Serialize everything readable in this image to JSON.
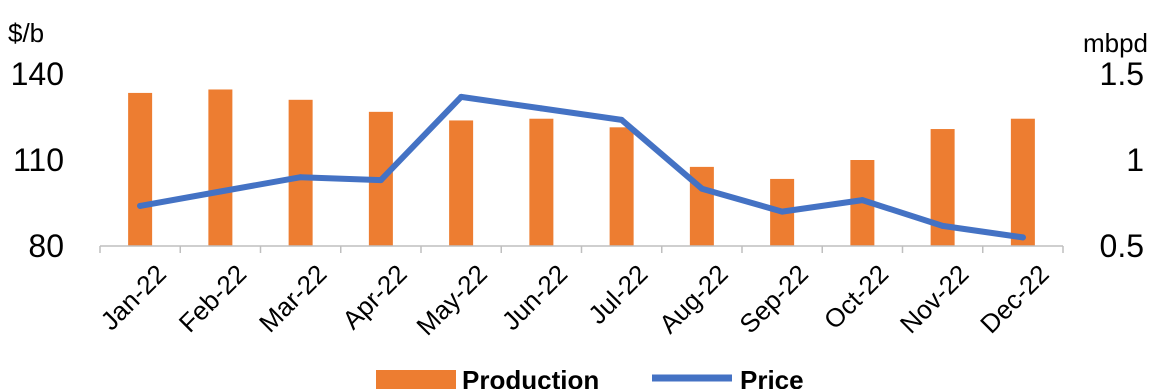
{
  "chart_data": {
    "type": "bar+line",
    "categories": [
      "Jan-22",
      "Feb-22",
      "Mar-22",
      "Apr-22",
      "May-22",
      "Jun-22",
      "Jul-22",
      "Aug-22",
      "Sep-22",
      "Oct-22",
      "Nov-22",
      "Dec-22"
    ],
    "series": [
      {
        "name": "Production",
        "type": "bar",
        "axis": "right",
        "color": "#ed7d31",
        "values": [
          1.39,
          1.41,
          1.35,
          1.28,
          1.23,
          1.24,
          1.19,
          0.96,
          0.89,
          1.0,
          1.18,
          1.24
        ]
      },
      {
        "name": "Price",
        "type": "line",
        "axis": "left",
        "color": "#4472c4",
        "values": [
          94,
          99,
          104,
          103,
          132,
          128,
          124,
          100,
          92,
          96,
          87,
          83
        ]
      }
    ],
    "left_axis": {
      "unit": "$/b",
      "min": 80,
      "max": 140,
      "ticks": [
        "140",
        "110",
        "80"
      ]
    },
    "right_axis": {
      "unit": "mbpd",
      "min": 0.5,
      "max": 1.5,
      "ticks": [
        "1.5",
        "1",
        "0.5"
      ]
    },
    "grid": false,
    "legend_position": "bottom"
  }
}
